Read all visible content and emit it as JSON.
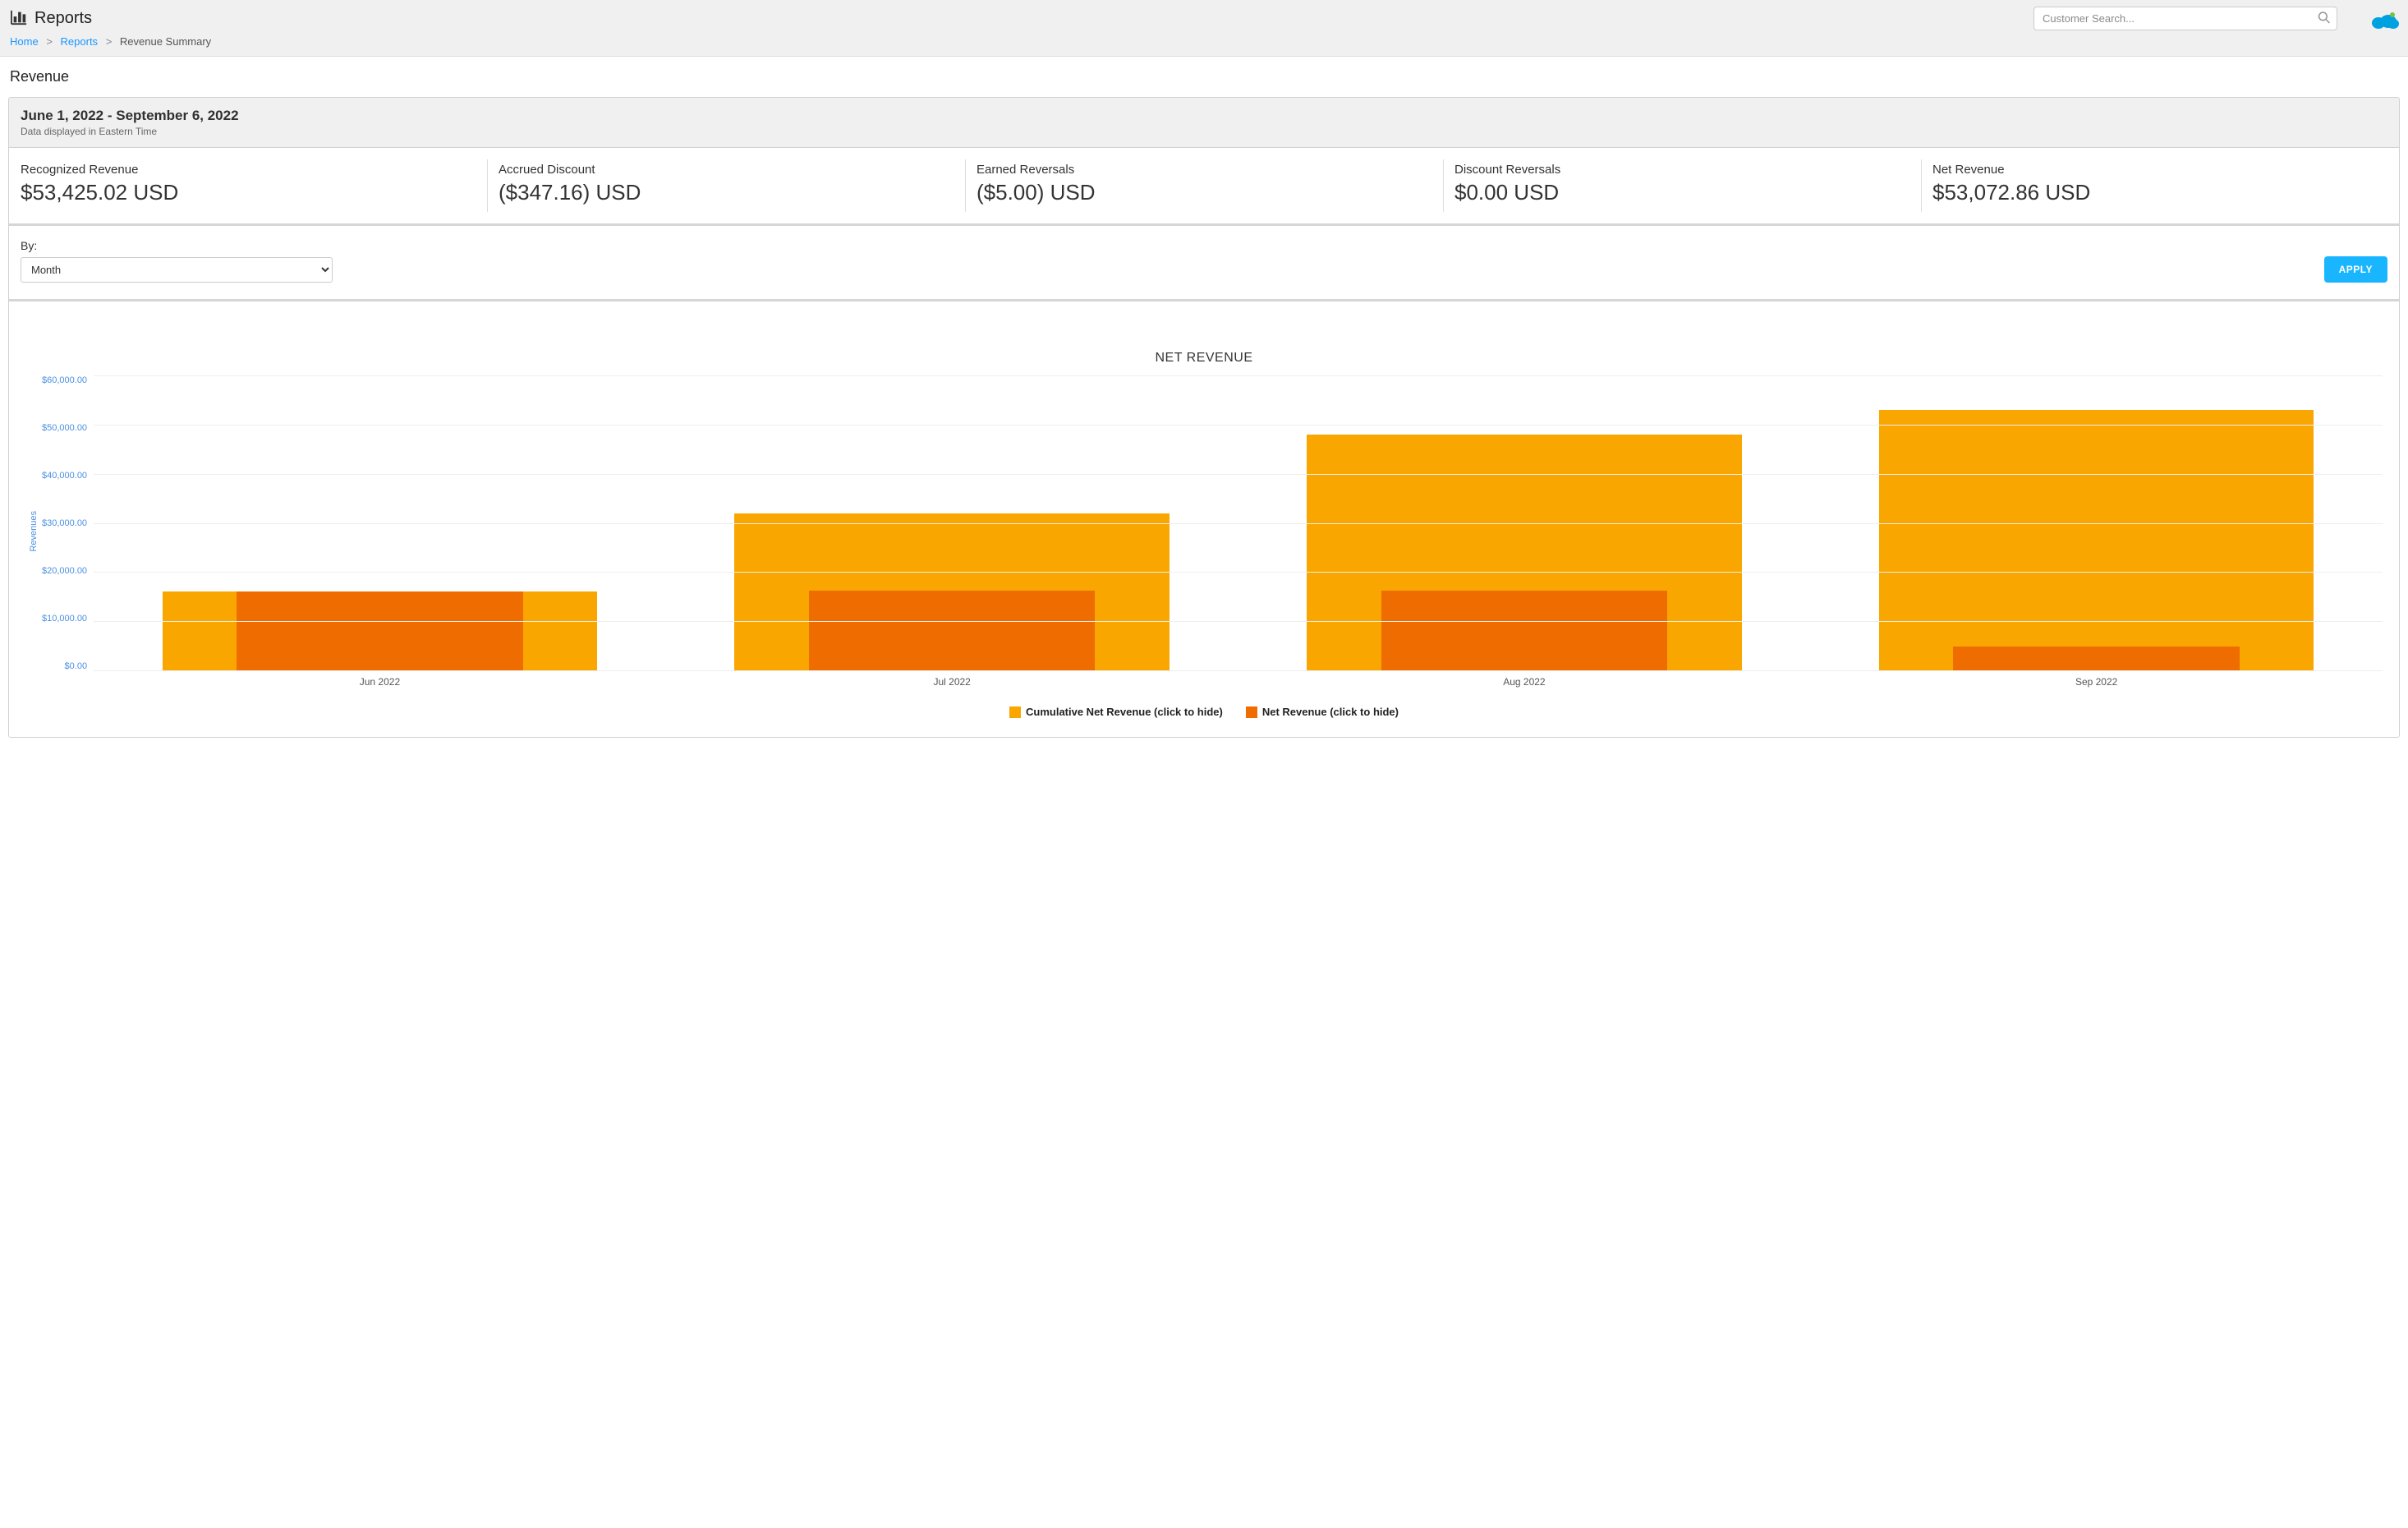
{
  "header": {
    "page_title": "Reports",
    "search_placeholder": "Customer Search...",
    "logo_color": "#00a1e0",
    "logo_dot_color": "#7ac142"
  },
  "breadcrumb": {
    "home": "Home",
    "reports": "Reports",
    "current": "Revenue Summary"
  },
  "section_title": "Revenue",
  "date_header": {
    "range": "June 1, 2022 - September 6, 2022",
    "tz_note": "Data displayed in Eastern Time"
  },
  "metrics": [
    {
      "label": "Recognized Revenue",
      "value": "$53,425.02 USD"
    },
    {
      "label": "Accrued Discount",
      "value": "($347.16) USD"
    },
    {
      "label": "Earned Reversals",
      "value": "($5.00) USD"
    },
    {
      "label": "Discount Reversals",
      "value": "$0.00 USD"
    },
    {
      "label": "Net Revenue",
      "value": "$53,072.86 USD"
    }
  ],
  "filter": {
    "label": "By:",
    "selected": "Month",
    "apply_label": "APPLY"
  },
  "chart": {
    "title": "NET REVENUE",
    "type": "grouped-bar",
    "y_axis_label": "Revenues",
    "y_max": 60000,
    "y_tick_step": 10000,
    "y_ticks": [
      "$60,000.00",
      "$50,000.00",
      "$40,000.00",
      "$30,000.00",
      "$20,000.00",
      "$10,000.00",
      "$0.00"
    ],
    "categories": [
      "Jun 2022",
      "Jul 2022",
      "Aug 2022",
      "Sep 2022"
    ],
    "series": [
      {
        "name": "Cumulative Net Revenue (click to hide)",
        "color": "#f9a600",
        "values": [
          16000,
          32000,
          48000,
          53000
        ],
        "bar_left_pct": 12,
        "bar_width_pct": 76
      },
      {
        "name": "Net Revenue (click to hide)",
        "color": "#ef6c00",
        "values": [
          16000,
          16200,
          16200,
          4800
        ],
        "bar_left_pct": 25,
        "bar_width_pct": 50
      }
    ],
    "tick_label_color": "#4a90e2",
    "grid_color": "#eeeeee",
    "axis_color": "#999999",
    "background_color": "#ffffff"
  }
}
